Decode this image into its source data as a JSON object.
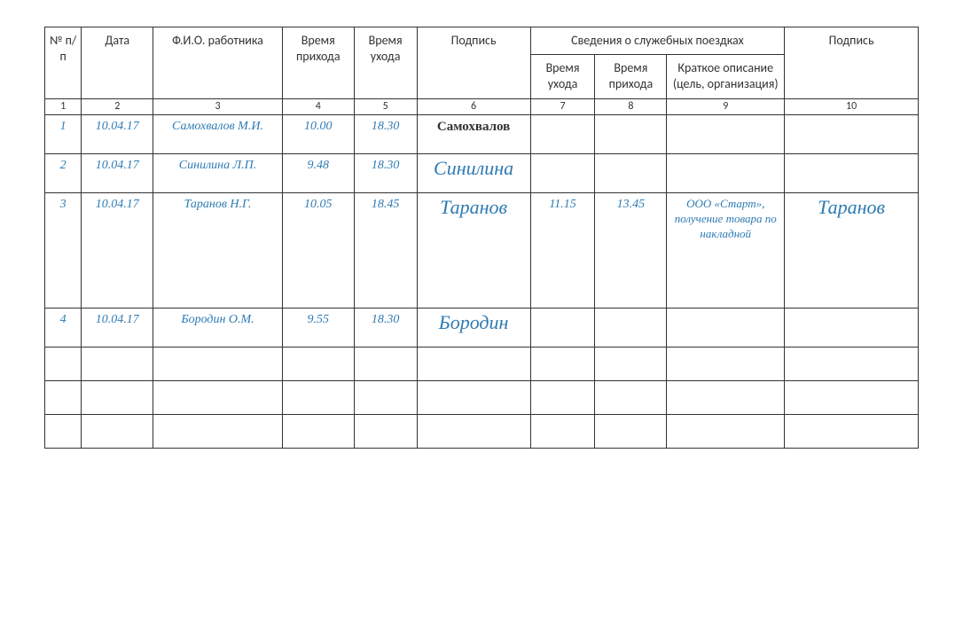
{
  "headers": {
    "num": "№ п/п",
    "date": "Дата",
    "fio": "Ф.И.О. работника",
    "time_in": "Время прихода",
    "time_out": "Время ухода",
    "sign1": "Подпись",
    "trips": "Сведения о служебных поездках",
    "trip_out": "Время ухода",
    "trip_in": "Время прихода",
    "trip_desc": "Краткое описание (цель, организация)",
    "sign2": "Подпись"
  },
  "col_numbers": [
    "1",
    "2",
    "3",
    "4",
    "5",
    "6",
    "7",
    "8",
    "9",
    "10"
  ],
  "col_widths_pct": [
    4.2,
    8.2,
    14.8,
    8.2,
    7.2,
    13.0,
    7.4,
    8.2,
    13.5,
    15.3
  ],
  "rows": [
    {
      "n": "1",
      "date": "10.04.17",
      "fio": "Самохвалов М.И.",
      "tin": "10.00",
      "tout": "18.30",
      "sig": "Самохвалов",
      "sig_style": "sig-bold",
      "trip_out": "",
      "trip_in": "",
      "desc": "",
      "sig2": ""
    },
    {
      "n": "2",
      "date": "10.04.17",
      "fio": "Синилина Л.П.",
      "tin": "9.48",
      "tout": "18.30",
      "sig": "Синилина",
      "sig_style": "sig",
      "trip_out": "",
      "trip_in": "",
      "desc": "",
      "sig2": ""
    },
    {
      "n": "3",
      "date": "10.04.17",
      "fio": "Таранов Н.Г.",
      "tin": "10.05",
      "tout": "18.45",
      "sig": "Таранов",
      "sig_style": "sig",
      "trip_out": "11.15",
      "trip_in": "13.45",
      "desc": "ООО «Старт», получение товара по накладной",
      "sig2": "Таранов",
      "tall": true
    },
    {
      "n": "4",
      "date": "10.04.17",
      "fio": "Бородин О.М.",
      "tin": "9.55",
      "tout": "18.30",
      "sig": "Бородин",
      "sig_style": "sig",
      "trip_out": "",
      "trip_in": "",
      "desc": "",
      "sig2": ""
    }
  ],
  "empty_rows": 3,
  "colors": {
    "border": "#333333",
    "entry_text": "#2e7bb3",
    "background": "#ffffff"
  },
  "fonts": {
    "header": "Calibri",
    "entry": "Segoe Script italic",
    "signature": "Brush Script MT italic"
  }
}
